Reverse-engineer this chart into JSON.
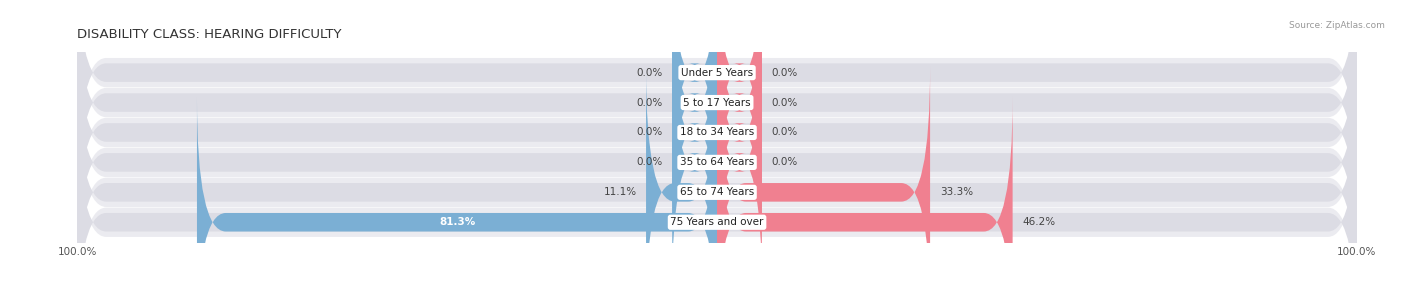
{
  "title": "DISABILITY CLASS: HEARING DIFFICULTY",
  "source": "Source: ZipAtlas.com",
  "categories": [
    "Under 5 Years",
    "5 to 17 Years",
    "18 to 34 Years",
    "35 to 64 Years",
    "65 to 74 Years",
    "75 Years and over"
  ],
  "male_values": [
    0.0,
    0.0,
    0.0,
    0.0,
    11.1,
    81.3
  ],
  "female_values": [
    0.0,
    0.0,
    0.0,
    0.0,
    33.3,
    46.2
  ],
  "male_color": "#7bafd4",
  "female_color": "#f08090",
  "bar_bg_color": "#dcdce4",
  "bar_row_bg": "#ebebf0",
  "max_value": 100.0,
  "title_fontsize": 9.5,
  "label_fontsize": 7.5,
  "category_fontsize": 7.5,
  "axis_label_fontsize": 7.5,
  "legend_fontsize": 8,
  "fig_width": 14.06,
  "fig_height": 3.04,
  "stub_size": 7.0
}
